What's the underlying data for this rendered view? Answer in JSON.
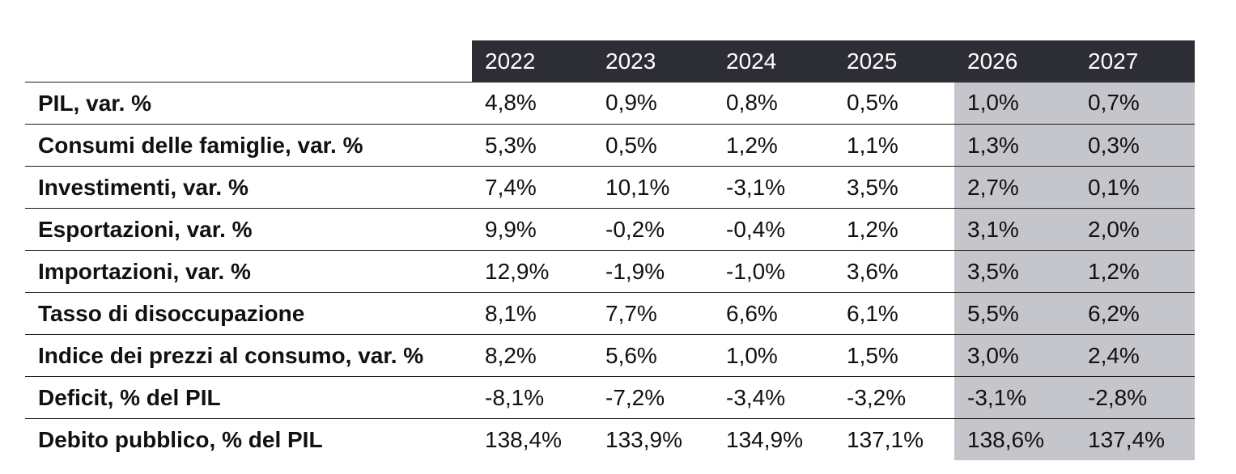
{
  "chart_data": {
    "type": "table",
    "columns": [
      "2022",
      "2023",
      "2024",
      "2025",
      "2026",
      "2027"
    ],
    "highlighted_columns": [
      "2026",
      "2027"
    ],
    "colors": {
      "header_background": "#2d2d35",
      "header_text": "#ffffff",
      "highlight_background": "#c5c5cc",
      "rule": "#1a1a1a"
    },
    "rows": [
      {
        "label": "PIL, var. %",
        "values": [
          "4,8%",
          "0,9%",
          "0,8%",
          "0,5%",
          "1,0%",
          "0,7%"
        ]
      },
      {
        "label": "Consumi delle famiglie, var. %",
        "values": [
          "5,3%",
          "0,5%",
          "1,2%",
          "1,1%",
          "1,3%",
          "0,3%"
        ]
      },
      {
        "label": "Investimenti, var. %",
        "values": [
          "7,4%",
          "10,1%",
          "-3,1%",
          "3,5%",
          "2,7%",
          "0,1%"
        ]
      },
      {
        "label": "Esportazioni, var. %",
        "values": [
          "9,9%",
          "-0,2%",
          "-0,4%",
          "1,2%",
          "3,1%",
          "2,0%"
        ]
      },
      {
        "label": "Importazioni, var. %",
        "values": [
          "12,9%",
          "-1,9%",
          "-1,0%",
          "3,6%",
          "3,5%",
          "1,2%"
        ]
      },
      {
        "label": "Tasso di disoccupazione",
        "values": [
          "8,1%",
          "7,7%",
          "6,6%",
          "6,1%",
          "5,5%",
          "6,2%"
        ]
      },
      {
        "label": "Indice dei prezzi al consumo, var. %",
        "values": [
          "8,2%",
          "5,6%",
          "1,0%",
          "1,5%",
          "3,0%",
          "2,4%"
        ]
      },
      {
        "label": "Deficit, % del PIL",
        "values": [
          "-8,1%",
          "-7,2%",
          "-3,4%",
          "-3,2%",
          "-3,1%",
          "-2,8%"
        ]
      },
      {
        "label": "Debito pubblico, % del PIL",
        "values": [
          "138,4%",
          "133,9%",
          "134,9%",
          "137,1%",
          "138,6%",
          "137,4%"
        ]
      }
    ]
  }
}
